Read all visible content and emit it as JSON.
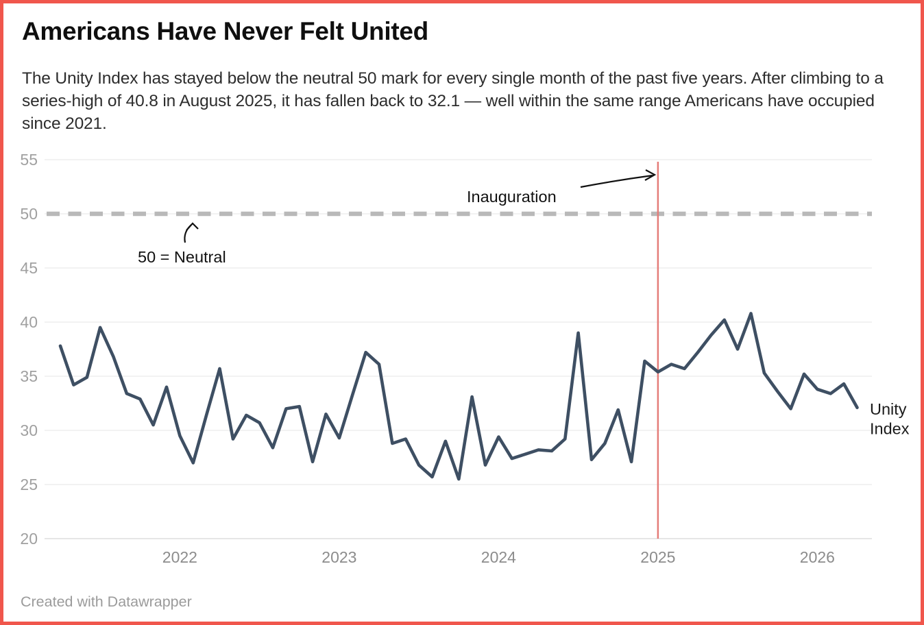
{
  "header": {
    "title": "Americans Have Never Felt United",
    "subtitle": "The Unity Index has stayed below the neutral 50 mark for every single month of the past five years. After climbing to a series-high of 40.8 in August 2025, it has fallen back to 32.1 — well within the same range Americans have occupied since 2021."
  },
  "footer": {
    "credit": "Created with Datawrapper"
  },
  "colors": {
    "frame": "#f0564c",
    "series": "#3e4f63",
    "event_line": "#e57d79",
    "neutral_line": "#b9b9b9",
    "grid": "#eaeaea",
    "baseline_grid": "#d6d6d6",
    "axis_text": "#a0a0a0",
    "year_text": "#8c8c8c",
    "annotation": "#111111"
  },
  "chart_data": {
    "type": "line",
    "title": "Americans Have Never Felt United",
    "subtitle": "The Unity Index has stayed below the neutral 50 mark for every single month of the past five years. After climbing to a series-high of 40.8 in August 2025, it has fallen back to 32.1 — well within the same range Americans have occupied since 2021.",
    "xlabel": "",
    "ylabel": "",
    "ylim": [
      20,
      55
    ],
    "grid": true,
    "legend_position": "right-inline",
    "x_range": [
      "2021-04",
      "2026-04"
    ],
    "y_axis": {
      "ticks": [
        55,
        50,
        45,
        40,
        35,
        30,
        25,
        20
      ]
    },
    "x_axis": {
      "year_labels": [
        "2022",
        "2023",
        "2024",
        "2025",
        "2026"
      ]
    },
    "reference_lines": [
      {
        "id": "neutral",
        "orientation": "horizontal",
        "value": 50,
        "style": "dashed",
        "label": "50 = Neutral"
      },
      {
        "id": "inauguration",
        "orientation": "vertical",
        "month": "2025-01",
        "label": "Inauguration"
      }
    ],
    "line_label": {
      "text": "Unity Index",
      "lines": [
        "Unity",
        "Index"
      ]
    },
    "series": [
      {
        "name": "Unity Index",
        "months": [
          "2021-04",
          "2021-05",
          "2021-06",
          "2021-07",
          "2021-08",
          "2021-09",
          "2021-10",
          "2021-11",
          "2021-12",
          "2022-01",
          "2022-02",
          "2022-03",
          "2022-04",
          "2022-05",
          "2022-06",
          "2022-07",
          "2022-08",
          "2022-09",
          "2022-10",
          "2022-11",
          "2022-12",
          "2023-01",
          "2023-02",
          "2023-03",
          "2023-04",
          "2023-05",
          "2023-06",
          "2023-07",
          "2023-08",
          "2023-09",
          "2023-10",
          "2023-11",
          "2023-12",
          "2024-01",
          "2024-02",
          "2024-03",
          "2024-04",
          "2024-05",
          "2024-06",
          "2024-07",
          "2024-08",
          "2024-09",
          "2024-10",
          "2024-11",
          "2024-12",
          "2025-01",
          "2025-02",
          "2025-03",
          "2025-04",
          "2025-05",
          "2025-06",
          "2025-07",
          "2025-08",
          "2025-09",
          "2025-10",
          "2025-11",
          "2025-12",
          "2026-01",
          "2026-02",
          "2026-03",
          "2026-04"
        ],
        "values": [
          37.8,
          34.2,
          34.9,
          39.5,
          36.8,
          33.4,
          32.9,
          30.5,
          34.0,
          29.5,
          27.0,
          31.4,
          35.7,
          29.2,
          31.4,
          30.7,
          28.4,
          32.0,
          32.2,
          27.1,
          31.5,
          29.3,
          33.3,
          37.2,
          36.1,
          28.8,
          29.2,
          26.8,
          25.7,
          29.0,
          25.5,
          33.1,
          26.8,
          29.4,
          27.4,
          27.8,
          28.2,
          28.1,
          29.2,
          39.0,
          27.3,
          28.8,
          31.9,
          27.1,
          36.4,
          35.4,
          36.1,
          35.7,
          37.2,
          38.8,
          40.2,
          37.5,
          40.8,
          35.3,
          33.6,
          32.0,
          35.2,
          33.8,
          33.4,
          34.3,
          32.1
        ]
      }
    ]
  }
}
